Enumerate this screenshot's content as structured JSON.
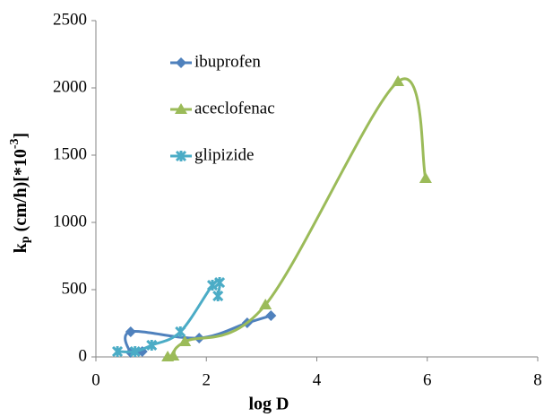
{
  "chart_data": {
    "type": "scatter-smooth",
    "x_label": "log D",
    "y_label": {
      "main": "k",
      "sub": "p",
      "mid": " (cm/h)[*10",
      "sup": "-3",
      "end": "]"
    },
    "xlim": [
      0,
      8
    ],
    "xticks": [
      0,
      2,
      4,
      6,
      8
    ],
    "ylim": [
      0,
      2500
    ],
    "yticks": [
      0,
      500,
      1000,
      1500,
      2000,
      2500
    ],
    "grid": false,
    "legend_position": "upper left",
    "series": [
      {
        "name": "ibuprofen",
        "color": "#4f81bd",
        "marker": "diamond",
        "x": [
          0.84,
          0.63,
          0.63,
          1.87,
          2.74,
          3.17
        ],
        "values": [
          40,
          33,
          187,
          140,
          253,
          307
        ]
      },
      {
        "name": "aceclofenac",
        "color": "#9bbb59",
        "marker": "triangle",
        "x": [
          1.3,
          1.4,
          1.61,
          3.07,
          5.47,
          5.97
        ],
        "values": [
          0,
          7,
          113,
          387,
          2047,
          1327
        ]
      },
      {
        "name": "glipizide",
        "color": "#4bacc6",
        "marker": "star",
        "x": [
          0.39,
          0.71,
          1.01,
          1.53,
          2.11,
          2.24,
          2.21
        ],
        "values": [
          40,
          40,
          87,
          187,
          533,
          553,
          453
        ]
      }
    ]
  }
}
